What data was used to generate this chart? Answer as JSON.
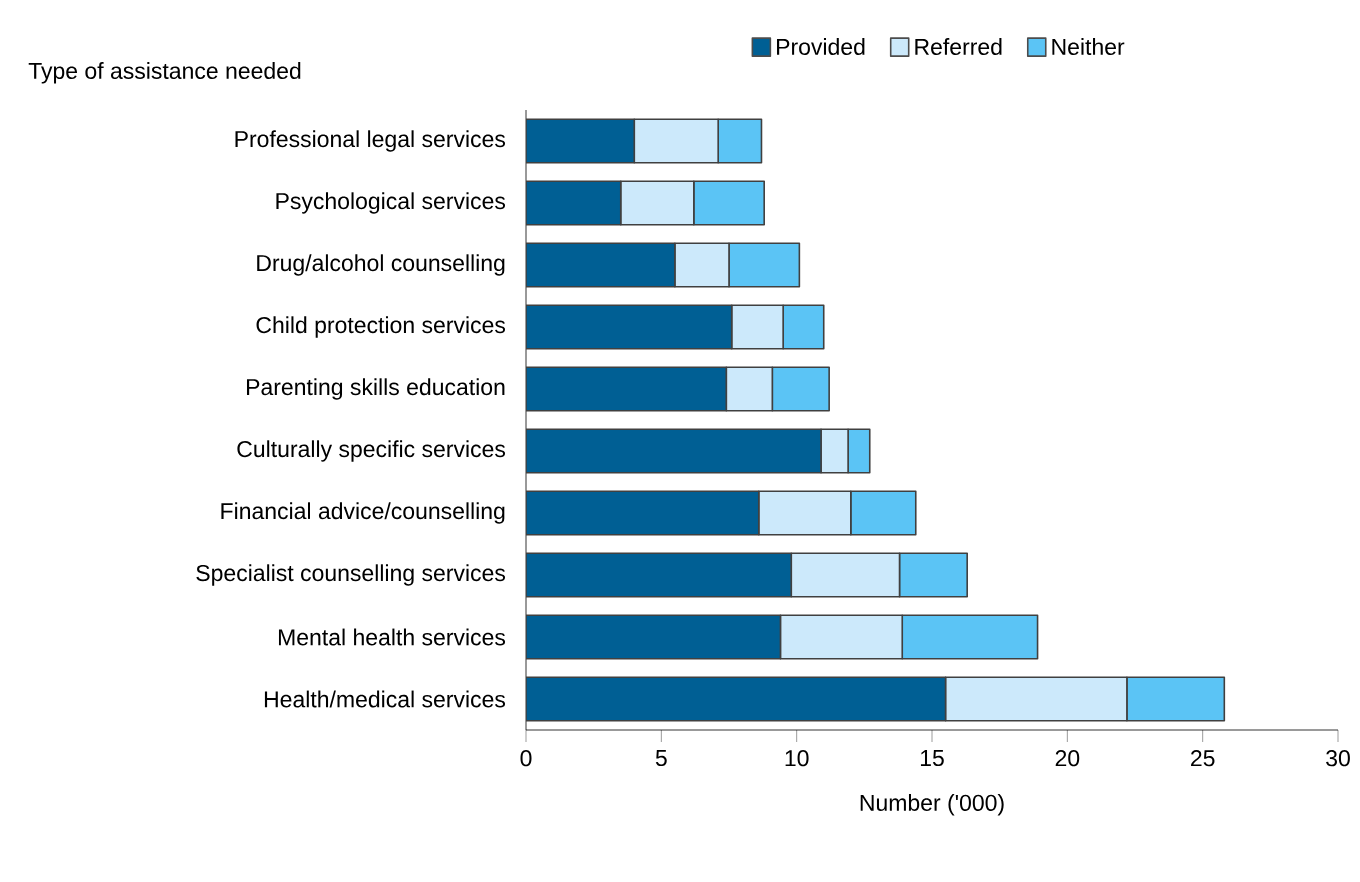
{
  "chart_data": {
    "type": "bar",
    "orientation": "horizontal",
    "stacked": true,
    "ylabel": "Type of assistance needed",
    "xlabel": "Number ('000)",
    "categories": [
      "Professional legal services",
      "Psychological services",
      "Drug/alcohol counselling",
      "Child protection services",
      "Parenting skills education",
      "Culturally specific services",
      "Financial advice/counselling",
      "Specialist counselling services",
      "Mental health services",
      "Health/medical services"
    ],
    "series": [
      {
        "name": "Provided",
        "color": "#005f94",
        "values": [
          4.0,
          3.5,
          5.5,
          7.6,
          7.4,
          10.9,
          8.6,
          9.8,
          9.4,
          15.5
        ]
      },
      {
        "name": "Referred",
        "color": "#cce9fb",
        "values": [
          3.1,
          2.7,
          2.0,
          1.9,
          1.7,
          1.0,
          3.4,
          4.0,
          4.5,
          6.7
        ]
      },
      {
        "name": "Neither",
        "color": "#5bc4f5",
        "values": [
          1.6,
          2.6,
          2.6,
          1.5,
          2.1,
          0.8,
          2.4,
          2.5,
          5.0,
          3.6
        ]
      }
    ],
    "xlim": [
      0,
      30
    ],
    "xticks": [
      0,
      5,
      10,
      15,
      20,
      25,
      30
    ],
    "legend": "top",
    "grid": false
  }
}
